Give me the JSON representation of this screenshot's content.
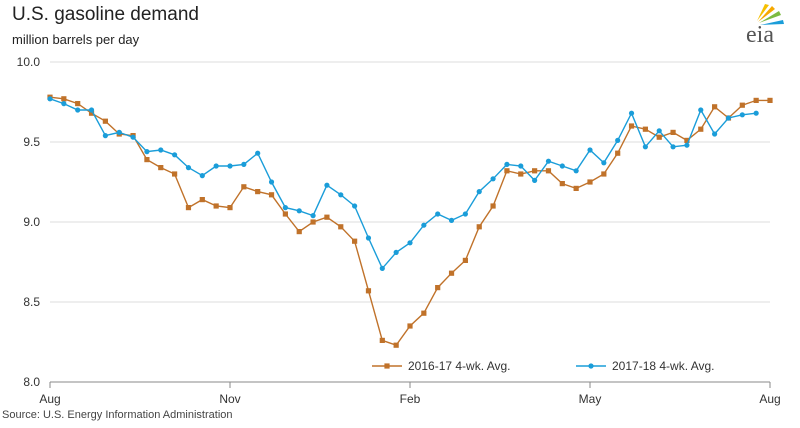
{
  "header": {
    "title": "U.S. gasoline demand",
    "subtitle": "million barrels per day",
    "logo_text": "eia"
  },
  "footer": {
    "source": "Source: U.S. Energy Information Administration"
  },
  "colors": {
    "series_2016_17": "#c0722a",
    "series_2017_18": "#1a9dd9",
    "axis": "#888888",
    "grid": "#dddddd"
  },
  "chart_data": {
    "type": "line",
    "title": "U.S. gasoline demand",
    "ylabel": "million barrels per day",
    "xlim": [
      0,
      52
    ],
    "ylim": [
      8.0,
      10.0
    ],
    "x_ticks": [
      {
        "label": "Aug",
        "x": 0
      },
      {
        "label": "Nov",
        "x": 13
      },
      {
        "label": "Feb",
        "x": 26
      },
      {
        "label": "May",
        "x": 39
      },
      {
        "label": "Aug",
        "x": 52
      }
    ],
    "y_ticks": [
      8.0,
      8.5,
      9.0,
      9.5,
      10.0
    ],
    "y_tick_labels": [
      "8.0",
      "8.5",
      "9.0",
      "9.5",
      "10.0"
    ],
    "grid": "horizontal",
    "legend_position": "bottom-center",
    "series": [
      {
        "name": "2016-17  4-wk. Avg.",
        "marker": "square",
        "values": [
          9.78,
          9.77,
          9.74,
          9.68,
          9.63,
          9.55,
          9.54,
          9.39,
          9.34,
          9.3,
          9.09,
          9.14,
          9.1,
          9.09,
          9.22,
          9.19,
          9.17,
          9.05,
          8.94,
          9.0,
          9.03,
          8.97,
          8.88,
          8.57,
          8.26,
          8.23,
          8.35,
          8.43,
          8.59,
          8.68,
          8.76,
          8.97,
          9.1,
          9.32,
          9.3,
          9.32,
          9.32,
          9.24,
          9.21,
          9.25,
          9.3,
          9.43,
          9.6,
          9.58,
          9.53,
          9.56,
          9.51,
          9.58,
          9.72,
          9.65,
          9.73,
          9.76,
          9.76
        ]
      },
      {
        "name": "2017-18  4-wk. Avg.",
        "marker": "circle",
        "values": [
          9.77,
          9.74,
          9.7,
          9.7,
          9.54,
          9.56,
          9.53,
          9.44,
          9.45,
          9.42,
          9.34,
          9.29,
          9.35,
          9.35,
          9.36,
          9.43,
          9.25,
          9.09,
          9.07,
          9.04,
          9.23,
          9.17,
          9.1,
          8.9,
          8.71,
          8.81,
          8.87,
          8.98,
          9.05,
          9.01,
          9.05,
          9.19,
          9.27,
          9.36,
          9.35,
          9.26,
          9.38,
          9.35,
          9.32,
          9.45,
          9.37,
          9.51,
          9.68,
          9.47,
          9.57,
          9.47,
          9.48,
          9.7,
          9.55,
          9.65,
          9.67,
          9.68
        ]
      }
    ]
  }
}
